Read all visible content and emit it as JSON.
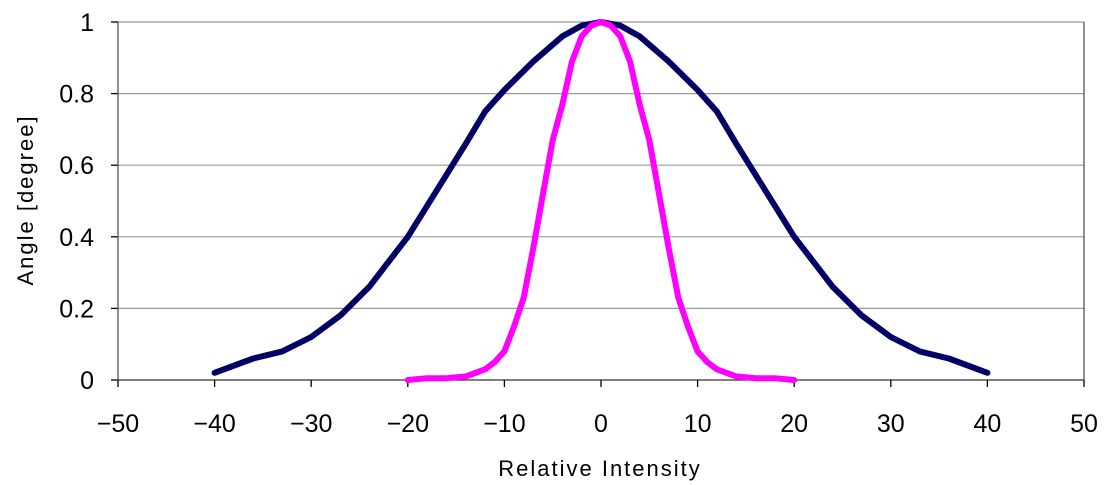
{
  "chart_data": {
    "type": "line",
    "xlabel": "Relative Intensity",
    "ylabel": "Angle [degree]",
    "xlim": [
      -50,
      50
    ],
    "ylim": [
      0,
      1
    ],
    "x_ticks": [
      "−50",
      "−40",
      "−30",
      "−20",
      "−10",
      "0",
      "10",
      "20",
      "30",
      "40",
      "50"
    ],
    "y_ticks": [
      "0",
      "0.2",
      "0.4",
      "0.6",
      "0.8",
      "1"
    ],
    "grid": "horizontal",
    "legend": "none",
    "series": [
      {
        "color": "#000066",
        "x": [
          -40,
          -36,
          -33,
          -30,
          -27,
          -24,
          -20,
          -17,
          -14,
          -12,
          -10,
          -7,
          -4,
          -2,
          0,
          2,
          4,
          7,
          10,
          12,
          14,
          17,
          20,
          24,
          27,
          30,
          33,
          36,
          40
        ],
        "y": [
          0.02,
          0.06,
          0.08,
          0.12,
          0.18,
          0.26,
          0.4,
          0.53,
          0.66,
          0.75,
          0.81,
          0.89,
          0.96,
          0.99,
          1.0,
          0.99,
          0.96,
          0.89,
          0.81,
          0.75,
          0.66,
          0.53,
          0.4,
          0.26,
          0.18,
          0.12,
          0.08,
          0.06,
          0.02
        ]
      },
      {
        "color": "#ff00ff",
        "x": [
          -20,
          -18,
          -16,
          -14,
          -12,
          -11,
          -10,
          -9,
          -8,
          -7,
          -6,
          -5,
          -4,
          -3,
          -2,
          -1,
          0,
          1,
          2,
          3,
          4,
          5,
          6,
          7,
          8,
          9,
          10,
          11,
          12,
          14,
          16,
          18,
          20
        ],
        "y": [
          0,
          0.005,
          0.005,
          0.01,
          0.03,
          0.05,
          0.08,
          0.15,
          0.23,
          0.37,
          0.52,
          0.67,
          0.77,
          0.89,
          0.96,
          0.99,
          1.0,
          0.99,
          0.96,
          0.89,
          0.77,
          0.67,
          0.52,
          0.37,
          0.23,
          0.15,
          0.08,
          0.05,
          0.03,
          0.01,
          0.005,
          0.005,
          0
        ]
      }
    ]
  }
}
